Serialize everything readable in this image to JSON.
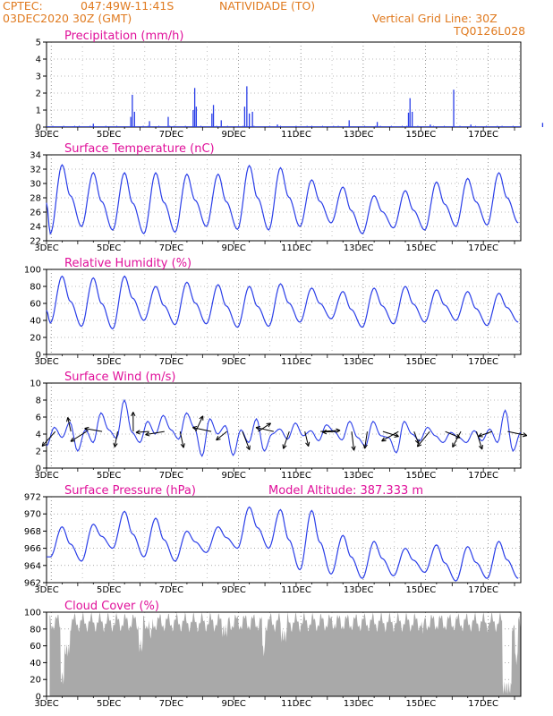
{
  "header": {
    "source": "CPTEC:",
    "coords": "047:49W-11:41S",
    "station": "NATIVIDADE (TO)",
    "init": "03DEC2020 30Z (GMT)",
    "grid_note": "Vertical Grid Line: 30Z",
    "code": "TQ0126L028"
  },
  "colors": {
    "header": "#e07a1f",
    "title": "#e0109a",
    "line": "#2a3ee8",
    "wind": "#000000",
    "cloud": "#a9a9a9"
  },
  "date_ticks": [
    "3DEC",
    "5DEC",
    "7DEC",
    "9DEC",
    "11DEC",
    "13DEC",
    "15DEC",
    "17DEC"
  ],
  "chart_data": [
    {
      "type": "bar",
      "title": "Precipitation (mm/h)",
      "ylim": [
        0,
        5
      ],
      "yticks": [
        0,
        1,
        2,
        3,
        4,
        5
      ],
      "spikes": [
        [
          0.85,
          0.05
        ],
        [
          1.5,
          0.2
        ],
        [
          2.7,
          0.6
        ],
        [
          2.75,
          1.9
        ],
        [
          2.82,
          0.9
        ],
        [
          3.3,
          0.35
        ],
        [
          3.9,
          0.6
        ],
        [
          4.7,
          1.0
        ],
        [
          4.75,
          2.3
        ],
        [
          4.8,
          1.2
        ],
        [
          5.3,
          0.8
        ],
        [
          5.35,
          1.3
        ],
        [
          5.6,
          0.4
        ],
        [
          6.35,
          1.2
        ],
        [
          6.42,
          2.4
        ],
        [
          6.5,
          0.8
        ],
        [
          6.6,
          0.9
        ],
        [
          7.4,
          0.15
        ],
        [
          8.5,
          0.05
        ],
        [
          9.7,
          0.4
        ],
        [
          10.6,
          0.3
        ],
        [
          11.6,
          0.85
        ],
        [
          11.65,
          1.7
        ],
        [
          11.72,
          0.9
        ],
        [
          12.3,
          0.15
        ],
        [
          13.05,
          2.2
        ],
        [
          13.6,
          0.15
        ],
        [
          15.9,
          0.25
        ],
        [
          16.65,
          0.4
        ],
        [
          16.75,
          0.3
        ]
      ]
    },
    {
      "type": "line",
      "title": "Surface Temperature (nC)",
      "ylim": [
        22,
        34
      ],
      "yticks": [
        22,
        24,
        26,
        28,
        30,
        32,
        34
      ],
      "daily": [
        [
          32.6,
          23.0
        ],
        [
          31.5,
          24.0
        ],
        [
          31.5,
          23.5
        ],
        [
          31.5,
          23.0
        ],
        [
          31.3,
          23.2
        ],
        [
          31.3,
          24.0
        ],
        [
          32.5,
          23.6
        ],
        [
          32.2,
          23.5
        ],
        [
          30.5,
          24.0
        ],
        [
          29.5,
          24.5
        ],
        [
          28.3,
          23.0
        ],
        [
          29.0,
          23.8
        ],
        [
          30.2,
          23.5
        ],
        [
          30.7,
          24.0
        ],
        [
          31.5,
          24.2
        ],
        [
          30.9,
          24.5
        ]
      ]
    },
    {
      "type": "line",
      "title": "Relative Humidity (%)",
      "ylim": [
        0,
        100
      ],
      "yticks": [
        0,
        20,
        40,
        60,
        80,
        100
      ],
      "daily": [
        [
          92,
          37
        ],
        [
          90,
          33
        ],
        [
          92,
          30
        ],
        [
          80,
          40
        ],
        [
          85,
          35
        ],
        [
          82,
          36
        ],
        [
          80,
          32
        ],
        [
          83,
          33
        ],
        [
          78,
          38
        ],
        [
          74,
          42
        ],
        [
          78,
          32
        ],
        [
          80,
          36
        ],
        [
          76,
          38
        ],
        [
          74,
          40
        ],
        [
          72,
          34
        ],
        [
          73,
          38
        ]
      ]
    },
    {
      "type": "line",
      "title": "Surface Wind (m/s)",
      "ylim": [
        0,
        10
      ],
      "yticks": [
        0,
        2,
        4,
        6,
        8,
        10
      ],
      "speed_profile": [
        2.6,
        4.8,
        3.6,
        5.4,
        2.0,
        4.5,
        3.0,
        6.5,
        4.5,
        3.5,
        8.0,
        4.2,
        3.0,
        5.5,
        4.0,
        6.2,
        4.5,
        3.4,
        6.5,
        4.8,
        1.4,
        5.8,
        4.0,
        5.0,
        1.5,
        4.5,
        3.0,
        5.8,
        2.0,
        4.0,
        4.6,
        3.4,
        5.3,
        3.8,
        4.4,
        3.2,
        5.1,
        4.3,
        3.3,
        5.5,
        3.6,
        2.6,
        5.5,
        3.8,
        3.6,
        1.8,
        5.5,
        4.0,
        3.2,
        4.8,
        3.8,
        3.0,
        4.2,
        3.6,
        3.0,
        4.4,
        3.2,
        4.6,
        3.0,
        6.8,
        2.0,
        4.2
      ]
    },
    {
      "type": "line",
      "title": "Surface Pressure (hPa)",
      "annotation": "Model Altitude: 387.333 m",
      "ylim": [
        962,
        972
      ],
      "yticks": [
        962,
        964,
        966,
        968,
        970,
        972
      ],
      "daily": [
        [
          968.5,
          965.0
        ],
        [
          968.8,
          964.5
        ],
        [
          970.3,
          966.0
        ],
        [
          969.5,
          965.0
        ],
        [
          968.0,
          964.5
        ],
        [
          968.5,
          965.5
        ],
        [
          970.8,
          966.0
        ],
        [
          970.5,
          966.0
        ],
        [
          970.4,
          963.5
        ],
        [
          967.5,
          963.0
        ],
        [
          966.8,
          962.5
        ],
        [
          966.0,
          962.8
        ],
        [
          966.4,
          963.2
        ],
        [
          966.2,
          962.2
        ],
        [
          966.8,
          962.5
        ],
        [
          965.8,
          962.5
        ]
      ]
    },
    {
      "type": "area",
      "title": "Cloud Cover (%)",
      "ylim": [
        0,
        100
      ],
      "yticks": [
        0,
        20,
        40,
        60,
        80,
        100
      ]
    }
  ]
}
